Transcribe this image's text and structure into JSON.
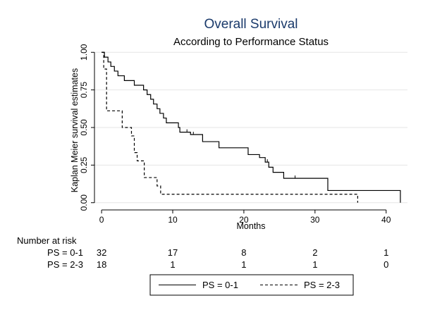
{
  "chart_data": {
    "type": "line",
    "title": "Overall Survival",
    "subtitle": "According to Performance Status",
    "xlabel": "Months",
    "ylabel": "Kaplan Meier survival estimates",
    "xlim": [
      -1,
      43
    ],
    "ylim": [
      -0.02,
      1.02
    ],
    "x_ticks": [
      0,
      10,
      20,
      30,
      40
    ],
    "x_tick_labels": [
      "0",
      "10",
      "20",
      "30",
      "40"
    ],
    "y_ticks": [
      0,
      0.25,
      0.5,
      0.75,
      1
    ],
    "y_tick_labels": [
      "0.00",
      "0.25",
      "0.50",
      "0.75",
      "1.00"
    ],
    "grid": true,
    "series": [
      {
        "name": "PS = 0-1",
        "style": "solid",
        "color": "#000000",
        "x": [
          0,
          0.4,
          0.9,
          1.3,
          1.8,
          2.3,
          3.2,
          4.6,
          5.9,
          6.4,
          6.9,
          7.3,
          7.8,
          8.2,
          8.7,
          9.1,
          10.8,
          11.0,
          12.5,
          14.2,
          16.5,
          20.6,
          22.2,
          23.0,
          23.5,
          24.1,
          25.6,
          31.8,
          42.0
        ],
        "y": [
          1.0,
          0.968,
          0.936,
          0.906,
          0.875,
          0.844,
          0.812,
          0.781,
          0.75,
          0.719,
          0.688,
          0.656,
          0.625,
          0.594,
          0.563,
          0.531,
          0.5,
          0.469,
          0.453,
          0.406,
          0.365,
          0.32,
          0.3,
          0.27,
          0.236,
          0.202,
          0.162,
          0.081,
          0.0
        ],
        "censored_x": [
          12.0,
          12.9,
          23.3,
          27.2
        ]
      },
      {
        "name": "PS = 2-3",
        "style": "dashed",
        "color": "#000000",
        "x": [
          0,
          0.3,
          0.7,
          2.9,
          4.2,
          4.6,
          5.0,
          6.0,
          7.8,
          8.3,
          36.0
        ],
        "y": [
          1.0,
          0.889,
          0.611,
          0.5,
          0.444,
          0.333,
          0.278,
          0.167,
          0.111,
          0.056,
          0.0
        ],
        "censored_x": []
      }
    ],
    "risk_table": {
      "title": "Number at risk",
      "times": [
        0,
        10,
        20,
        30,
        40
      ],
      "rows": [
        {
          "label": "PS = 0-1",
          "counts": [
            "32",
            "17",
            "8",
            "2",
            "1"
          ]
        },
        {
          "label": "PS = 2-3",
          "counts": [
            "18",
            "1",
            "1",
            "1",
            "0"
          ]
        }
      ]
    },
    "legend": {
      "position": "bottom-center",
      "entries": [
        {
          "label": "PS = 0-1",
          "style": "solid"
        },
        {
          "label": "PS = 2-3",
          "style": "dashed"
        }
      ]
    },
    "colors": {
      "title": "#1a3a6b",
      "axis": "#000000",
      "grid": "#e6e6e6",
      "background": "#ffffff"
    }
  }
}
